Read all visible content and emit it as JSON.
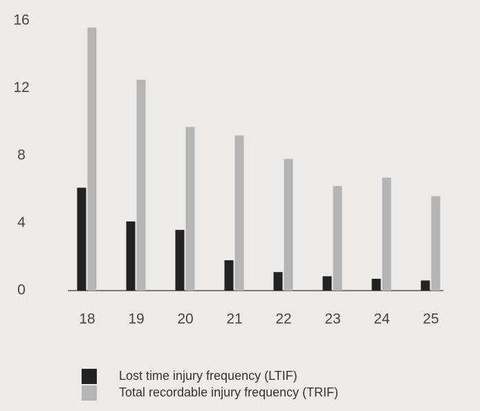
{
  "chart_data": {
    "type": "bar",
    "categories": [
      "18",
      "19",
      "20",
      "21",
      "22",
      "23",
      "24",
      "25"
    ],
    "series": [
      {
        "name": "Lost time injury frequency (LTIF)",
        "color": "#222222",
        "values": [
          6.1,
          4.1,
          3.6,
          1.8,
          1.1,
          0.85,
          0.7,
          0.6
        ]
      },
      {
        "name": "Total recordable injury frequency (TRIF)",
        "color": "#b5b5b5",
        "values": [
          15.6,
          12.5,
          9.7,
          9.2,
          7.8,
          6.2,
          6.7,
          5.6
        ]
      }
    ],
    "ylim": [
      0,
      16
    ],
    "yticks": [
      0,
      4,
      8,
      12,
      16
    ],
    "grid": false
  }
}
